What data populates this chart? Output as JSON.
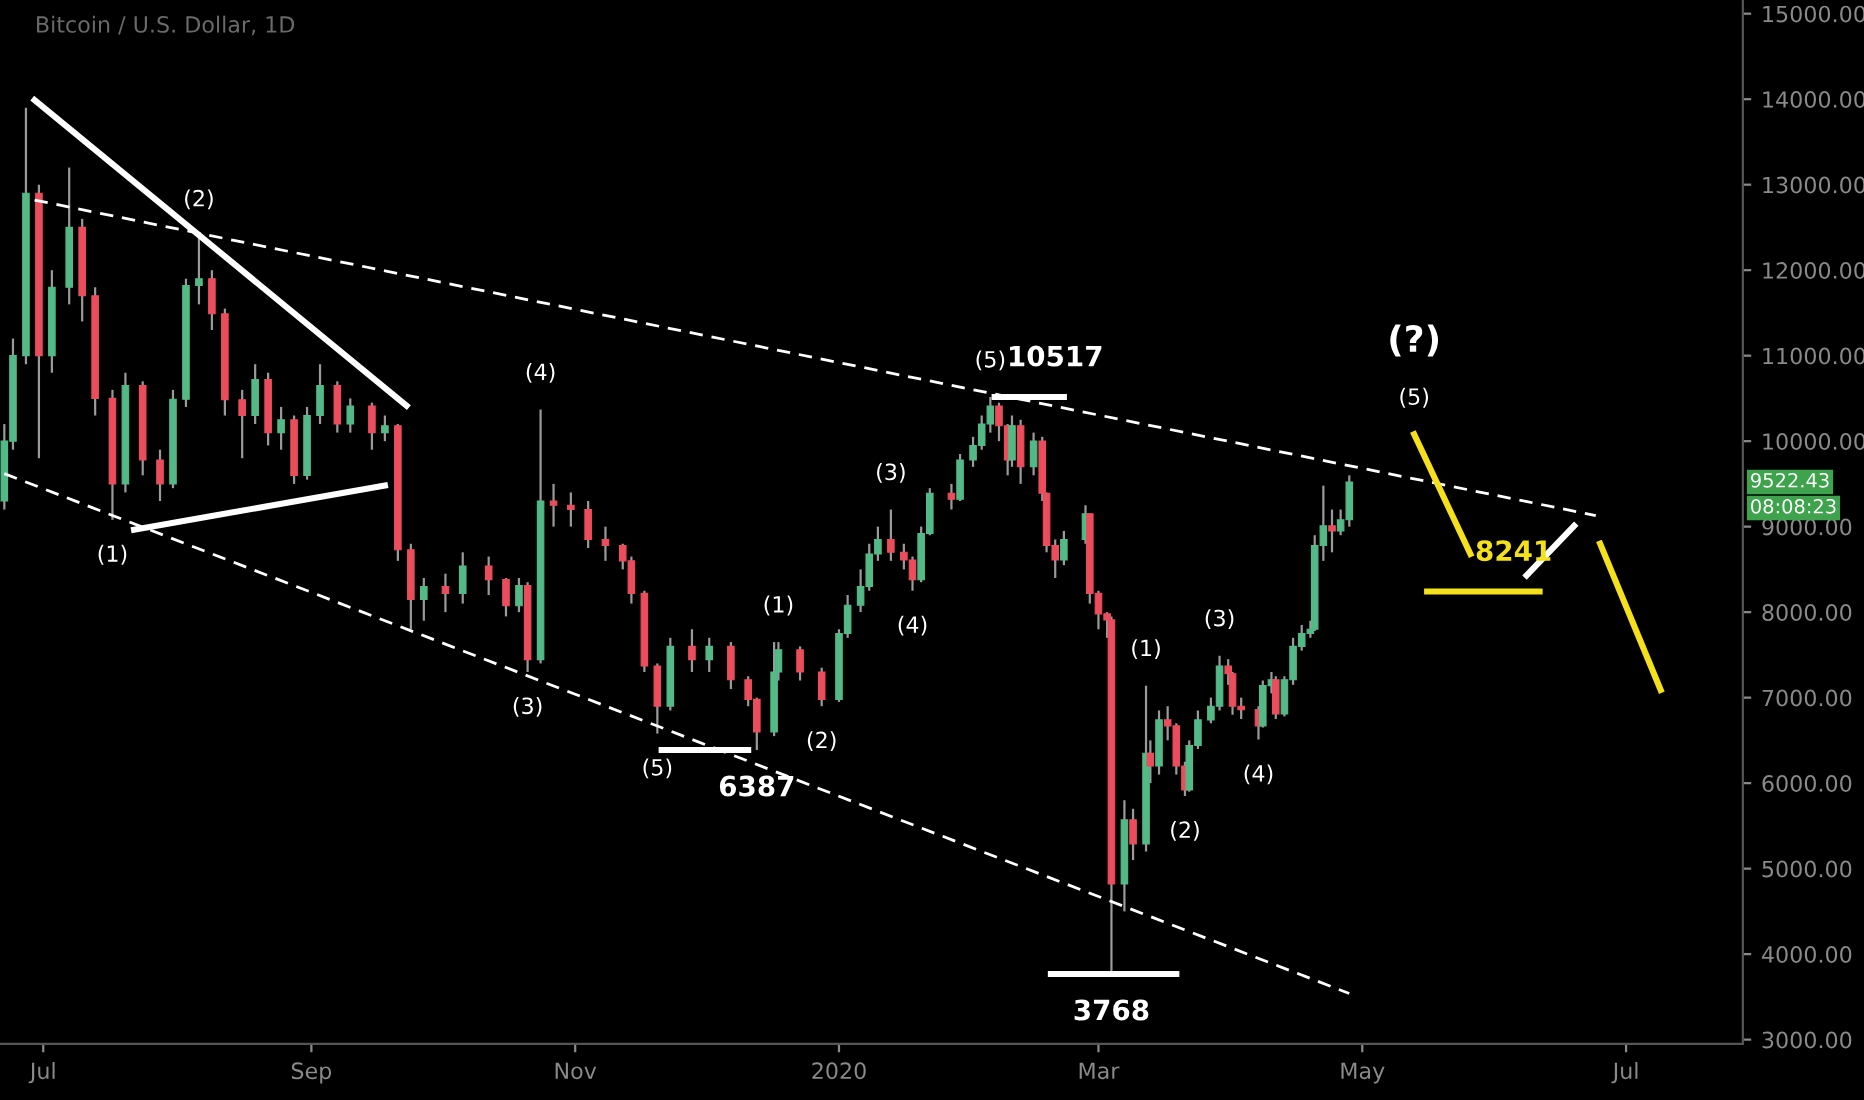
{
  "chart_data": {
    "type": "candlestick",
    "title": "Bitcoin / U.S. Dollar, 1D",
    "x": [
      "2019-06-22",
      "2019-06-24",
      "2019-06-27",
      "2019-06-30",
      "2019-07-03",
      "2019-07-07",
      "2019-07-10",
      "2019-07-13",
      "2019-07-17",
      "2019-07-20",
      "2019-07-24",
      "2019-07-28",
      "2019-07-31",
      "2019-08-03",
      "2019-08-06",
      "2019-08-09",
      "2019-08-12",
      "2019-08-16",
      "2019-08-19",
      "2019-08-22",
      "2019-08-25",
      "2019-08-28",
      "2019-08-31",
      "2019-09-03",
      "2019-09-07",
      "2019-09-10",
      "2019-09-15",
      "2019-09-18",
      "2019-09-21",
      "2019-09-24",
      "2019-09-27",
      "2019-10-02",
      "2019-10-06",
      "2019-10-12",
      "2019-10-16",
      "2019-10-19",
      "2019-10-21",
      "2019-10-24",
      "2019-10-27",
      "2019-10-31",
      "2019-11-04",
      "2019-11-08",
      "2019-11-12",
      "2019-11-14",
      "2019-11-17",
      "2019-11-20",
      "2019-11-23",
      "2019-11-28",
      "2019-12-02",
      "2019-12-07",
      "2019-12-11",
      "2019-12-13",
      "2019-12-17",
      "2019-12-18",
      "2019-12-23",
      "2019-12-28",
      "2020-01-01",
      "2020-01-03",
      "2020-01-06",
      "2020-01-08",
      "2020-01-10",
      "2020-01-13",
      "2020-01-16",
      "2020-01-18",
      "2020-01-20",
      "2020-01-22",
      "2020-01-27",
      "2020-01-29",
      "2020-02-01",
      "2020-02-03",
      "2020-02-05",
      "2020-02-07",
      "2020-02-09",
      "2020-02-10",
      "2020-02-12",
      "2020-02-15",
      "2020-02-17",
      "2020-02-18",
      "2020-02-20",
      "2020-02-22",
      "2020-02-27",
      "2020-02-28",
      "2020-03-01",
      "2020-03-03",
      "2020-03-04",
      "2020-03-07",
      "2020-03-09",
      "2020-03-12",
      "2020-03-13",
      "2020-03-15",
      "2020-03-17",
      "2020-03-19",
      "2020-03-21",
      "2020-03-22",
      "2020-03-24",
      "2020-03-27",
      "2020-03-29",
      "2020-03-31",
      "2020-04-01",
      "2020-04-03",
      "2020-04-07",
      "2020-04-08",
      "2020-04-10",
      "2020-04-11",
      "2020-04-13",
      "2020-04-15",
      "2020-04-17",
      "2020-04-19",
      "2020-04-20",
      "2020-04-22",
      "2020-04-24",
      "2020-04-26",
      "2020-04-28"
    ],
    "ohlc": [
      [
        9300,
        10200,
        9200,
        10000
      ],
      [
        10000,
        11200,
        9900,
        11000
      ],
      [
        11000,
        13900,
        10900,
        12900
      ],
      [
        12900,
        13000,
        9800,
        11000
      ],
      [
        11000,
        12000,
        10800,
        11800
      ],
      [
        11800,
        13200,
        11600,
        12500
      ],
      [
        12500,
        12600,
        11400,
        11700
      ],
      [
        11700,
        11800,
        10300,
        10500
      ],
      [
        10500,
        10600,
        9080,
        9500
      ],
      [
        9500,
        10800,
        9400,
        10650
      ],
      [
        10650,
        10700,
        9600,
        9780
      ],
      [
        9780,
        9900,
        9300,
        9500
      ],
      [
        9500,
        10600,
        9450,
        10490
      ],
      [
        10490,
        11900,
        10400,
        11820
      ],
      [
        11820,
        12400,
        11600,
        11900
      ],
      [
        11900,
        12000,
        11300,
        11490
      ],
      [
        11490,
        11550,
        10300,
        10485
      ],
      [
        10485,
        10600,
        9800,
        10300
      ],
      [
        10300,
        10900,
        10200,
        10720
      ],
      [
        10720,
        10800,
        9950,
        10100
      ],
      [
        10100,
        10400,
        9900,
        10250
      ],
      [
        10250,
        10300,
        9500,
        9600
      ],
      [
        9600,
        10400,
        9550,
        10300
      ],
      [
        10300,
        10900,
        10200,
        10650
      ],
      [
        10650,
        10700,
        10100,
        10200
      ],
      [
        10200,
        10500,
        10100,
        10410
      ],
      [
        10410,
        10450,
        9900,
        10100
      ],
      [
        10100,
        10300,
        10000,
        10180
      ],
      [
        10180,
        10200,
        8600,
        8730
      ],
      [
        8730,
        8800,
        7800,
        8150
      ],
      [
        8150,
        8400,
        7900,
        8300
      ],
      [
        8300,
        8450,
        8000,
        8220
      ],
      [
        8220,
        8700,
        8100,
        8540
      ],
      [
        8540,
        8650,
        8200,
        8380
      ],
      [
        8380,
        8400,
        7950,
        8075
      ],
      [
        8075,
        8400,
        8000,
        8310
      ],
      [
        8310,
        8350,
        7300,
        7445
      ],
      [
        7445,
        10370,
        7400,
        9300
      ],
      [
        9300,
        9500,
        9000,
        9250
      ],
      [
        9250,
        9400,
        9000,
        9200
      ],
      [
        9200,
        9300,
        8750,
        8850
      ],
      [
        8850,
        9000,
        8600,
        8780
      ],
      [
        8780,
        8800,
        8500,
        8600
      ],
      [
        8600,
        8650,
        8100,
        8220
      ],
      [
        8220,
        8250,
        7300,
        7370
      ],
      [
        7370,
        7400,
        6580,
        6900
      ],
      [
        6900,
        7700,
        6850,
        7600
      ],
      [
        7600,
        7800,
        7300,
        7445
      ],
      [
        7445,
        7700,
        7300,
        7600
      ],
      [
        7600,
        7650,
        7100,
        7210
      ],
      [
        7210,
        7250,
        6900,
        6980
      ],
      [
        6980,
        7000,
        6387,
        6600
      ],
      [
        6600,
        7650,
        6550,
        7300
      ],
      [
        7300,
        7650,
        7200,
        7560
      ],
      [
        7560,
        7600,
        7200,
        7300
      ],
      [
        7300,
        7350,
        6900,
        6980
      ],
      [
        6980,
        7800,
        6950,
        7750
      ],
      [
        7750,
        8200,
        7700,
        8080
      ],
      [
        8080,
        8500,
        8000,
        8300
      ],
      [
        8300,
        8800,
        8250,
        8680
      ],
      [
        8680,
        9000,
        8600,
        8850
      ],
      [
        8850,
        9200,
        8600,
        8700
      ],
      [
        8700,
        8800,
        8500,
        8610
      ],
      [
        8610,
        8650,
        8250,
        8380
      ],
      [
        8380,
        9000,
        8350,
        8920
      ],
      [
        8920,
        9450,
        8900,
        9390
      ],
      [
        9390,
        9500,
        9200,
        9320
      ],
      [
        9320,
        9850,
        9300,
        9780
      ],
      [
        9780,
        10050,
        9700,
        9950
      ],
      [
        9950,
        10300,
        9900,
        10200
      ],
      [
        10200,
        10517,
        10100,
        10410
      ],
      [
        10410,
        10450,
        10000,
        10180
      ],
      [
        10180,
        10200,
        9600,
        9780
      ],
      [
        9780,
        10300,
        9700,
        10180
      ],
      [
        10180,
        10250,
        9500,
        9700
      ],
      [
        9700,
        10100,
        9600,
        10000
      ],
      [
        10000,
        10050,
        9300,
        9390
      ],
      [
        9390,
        9400,
        8700,
        8780
      ],
      [
        8780,
        8850,
        8400,
        8610
      ],
      [
        8610,
        8950,
        8550,
        8850
      ],
      [
        8850,
        9250,
        8800,
        9150
      ],
      [
        9150,
        9150,
        8100,
        8220
      ],
      [
        8220,
        8250,
        7800,
        7980
      ],
      [
        7980,
        8000,
        7700,
        7910
      ],
      [
        7910,
        7950,
        3768,
        4820
      ],
      [
        4820,
        5800,
        4500,
        5570
      ],
      [
        5570,
        5700,
        5100,
        5290
      ],
      [
        5290,
        7140,
        5200,
        6350
      ],
      [
        6350,
        6500,
        6000,
        6200
      ],
      [
        6200,
        6850,
        6100,
        6740
      ],
      [
        6740,
        6900,
        6500,
        6670
      ],
      [
        6670,
        6700,
        6100,
        6200
      ],
      [
        6200,
        6250,
        5850,
        5920
      ],
      [
        5920,
        6500,
        5900,
        6440
      ],
      [
        6440,
        6850,
        6400,
        6740
      ],
      [
        6740,
        7000,
        6700,
        6900
      ],
      [
        6900,
        7490,
        6850,
        7370
      ],
      [
        7370,
        7450,
        7150,
        7280
      ],
      [
        7280,
        7300,
        6800,
        6900
      ],
      [
        6900,
        7000,
        6750,
        6860
      ],
      [
        6860,
        6900,
        6510,
        6670
      ],
      [
        6670,
        7200,
        6650,
        7140
      ],
      [
        7140,
        7300,
        7050,
        7210
      ],
      [
        7210,
        7250,
        6750,
        6810
      ],
      [
        6810,
        7250,
        6780,
        7210
      ],
      [
        7210,
        7700,
        7150,
        7600
      ],
      [
        7600,
        7850,
        7550,
        7750
      ],
      [
        7750,
        7900,
        7700,
        7800
      ],
      [
        7800,
        8900,
        7780,
        8780
      ],
      [
        8780,
        9480,
        8600,
        9010
      ],
      [
        9010,
        9200,
        8700,
        8950
      ],
      [
        8950,
        9200,
        8900,
        9080
      ],
      [
        9080,
        9600,
        9000,
        9522.43
      ]
    ],
    "series": [
      {
        "type": "line",
        "color": "#ffffff",
        "line_style": "solid",
        "x": [
          "2019-06-29",
          "2019-09-23"
        ],
        "values": [
          13990,
          10415
        ]
      },
      {
        "type": "line",
        "color": "#ffffff",
        "line_style": "solid",
        "x": [
          "2019-07-22",
          "2019-09-18"
        ],
        "values": [
          8965,
          9480
        ]
      },
      {
        "type": "line",
        "color": "#ffffff",
        "line_style": "dashed",
        "x": [
          "2019-06-29",
          "2020-06-24"
        ],
        "values": [
          12820,
          9130
        ]
      },
      {
        "type": "line",
        "color": "#ffffff",
        "line_style": "dashed",
        "x": [
          "2019-06-22",
          "2020-04-28"
        ],
        "values": [
          9620,
          3540
        ]
      },
      {
        "type": "line",
        "color": "#ffffff",
        "line_style": "solid",
        "x": [
          "2020-02-06",
          "2020-02-22"
        ],
        "values": [
          10517,
          10517
        ]
      },
      {
        "type": "line",
        "color": "#ffffff",
        "line_style": "solid",
        "x": [
          "2019-11-21",
          "2019-12-11"
        ],
        "values": [
          6387,
          6387
        ]
      },
      {
        "type": "line",
        "color": "#ffffff",
        "line_style": "solid",
        "x": [
          "2020-02-19",
          "2020-03-19"
        ],
        "values": [
          3768,
          3768
        ]
      },
      {
        "type": "line",
        "color": "#f5e11b",
        "line_style": "solid",
        "x": [
          "2020-05-16",
          "2020-06-11"
        ],
        "values": [
          8241,
          8241
        ]
      },
      {
        "type": "line",
        "color": "#f5e11b",
        "line_style": "solid",
        "x": [
          "2020-05-13",
          "2020-05-26"
        ],
        "values": [
          10080,
          8680
        ]
      },
      {
        "type": "line",
        "color": "#ffffff",
        "line_style": "solid",
        "x": [
          "2020-06-08",
          "2020-06-19"
        ],
        "values": [
          8430,
          9010
        ]
      },
      {
        "type": "line",
        "color": "#f5e11b",
        "line_style": "solid",
        "x": [
          "2020-06-25",
          "2020-07-09"
        ],
        "values": [
          8800,
          7090
        ]
      }
    ],
    "annotations": [
      {
        "text": "(1)",
        "x": "2019-07-17",
        "y": 9080
      },
      {
        "text": "(2)",
        "x": "2019-08-06",
        "y": 12400
      },
      {
        "text": "(3)",
        "x": "2019-10-21",
        "y": 7300
      },
      {
        "text": "(4)",
        "x": "2019-10-24",
        "y": 10370
      },
      {
        "text": "(5)",
        "x": "2019-11-20",
        "y": 6580
      },
      {
        "text": "6387",
        "x": "2019-12-13",
        "y": 6387
      },
      {
        "text": "(1)",
        "x": "2019-12-18",
        "y": 7650
      },
      {
        "text": "(2)",
        "x": "2019-12-28",
        "y": 6900
      },
      {
        "text": "(3)",
        "x": "2020-01-13",
        "y": 9200
      },
      {
        "text": "(4)",
        "x": "2020-01-18",
        "y": 8250
      },
      {
        "text": "(5)",
        "x": "2020-02-05",
        "y": 10517
      },
      {
        "text": "10517",
        "x": "2020-02-20",
        "y": 10517
      },
      {
        "text": "3768",
        "x": "2020-03-04",
        "y": 3768
      },
      {
        "text": "(1)",
        "x": "2020-03-12",
        "y": 7140
      },
      {
        "text": "(2)",
        "x": "2020-03-21",
        "y": 5850
      },
      {
        "text": "(3)",
        "x": "2020-03-29",
        "y": 7490
      },
      {
        "text": "(4)",
        "x": "2020-04-07",
        "y": 6510
      },
      {
        "text": "(?)",
        "x": "2020-05-13",
        "y": 10080
      },
      {
        "text": "(5)",
        "x": "2020-05-13",
        "y": 10080
      },
      {
        "text": "8241",
        "x": "2020-06-05",
        "y": 8241
      },
      "9522.43",
      "08:08:23"
    ],
    "xlim": [
      "2019-06-21",
      "2020-07-28"
    ],
    "xticks": [
      {
        "value": "2019-07-01",
        "label": "Jul"
      },
      {
        "value": "2019-09-01",
        "label": "Sep"
      },
      {
        "value": "2019-11-01",
        "label": "Nov"
      },
      {
        "value": "2020-01-01",
        "label": "2020"
      },
      {
        "value": "2020-03-01",
        "label": "Mar"
      },
      {
        "value": "2020-05-01",
        "label": "May"
      },
      {
        "value": "2020-07-01",
        "label": "Jul"
      }
    ],
    "ylim": [
      2950,
      15160
    ],
    "yticks": [
      {
        "value": 3000,
        "label": "3000.00"
      },
      {
        "value": 4000,
        "label": "4000.00"
      },
      {
        "value": 5000,
        "label": "5000.00"
      },
      {
        "value": 6000,
        "label": "6000.00"
      },
      {
        "value": 7000,
        "label": "7000.00"
      },
      {
        "value": 8000,
        "label": "8000.00"
      },
      {
        "value": 9000,
        "label": "9000.00"
      },
      {
        "value": 10000,
        "label": "10000.00"
      },
      {
        "value": 11000,
        "label": "11000.00"
      },
      {
        "value": 12000,
        "label": "12000.00"
      },
      {
        "value": 13000,
        "label": "13000.00"
      },
      {
        "value": 14000,
        "label": "14000.00"
      },
      {
        "value": 15000,
        "label": "15000.00"
      }
    ],
    "grid": false,
    "legend": false
  }
}
